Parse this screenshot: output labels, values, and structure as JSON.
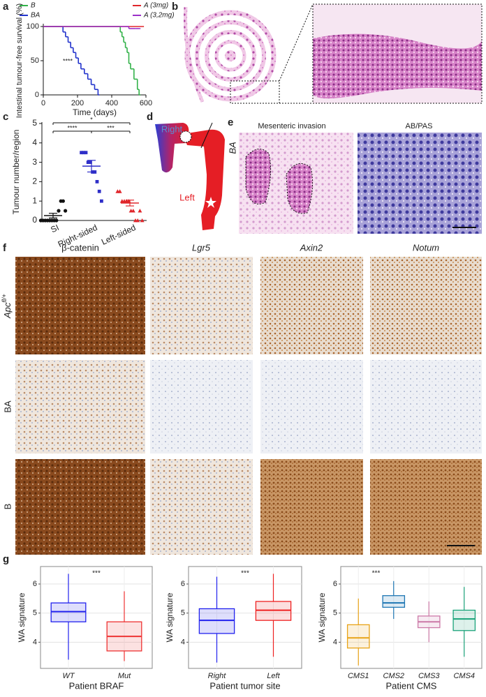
{
  "panel_labels": [
    "a",
    "b",
    "c",
    "d",
    "e",
    "f",
    "g"
  ],
  "chart_data": [
    {
      "type": "survival",
      "ylabel": "Intestinal tumour-free survival (%)",
      "xlabel": "Time (days)",
      "annotation": "****",
      "xlim": [
        0,
        600
      ],
      "xticks": [
        0,
        200,
        400,
        600
      ],
      "ylim": [
        0,
        100
      ],
      "yticks": [
        0,
        50,
        100
      ],
      "series": [
        {
          "name": "BA",
          "color": "#2233cc",
          "x": [
            0,
            115,
            130,
            145,
            160,
            175,
            190,
            205,
            220,
            240,
            260,
            280,
            300,
            320
          ],
          "values": [
            100,
            92,
            85,
            77,
            69,
            62,
            54,
            46,
            38,
            31,
            23,
            15,
            8,
            0
          ]
        },
        {
          "name": "B",
          "color": "#33b24a",
          "x": [
            0,
            450,
            460,
            470,
            480,
            490,
            500,
            510,
            530,
            550,
            560
          ],
          "values": [
            100,
            92,
            85,
            77,
            69,
            62,
            46,
            38,
            23,
            8,
            0
          ]
        },
        {
          "name": "A (3mg)",
          "color": "#e0262b",
          "x": [
            0,
            580
          ],
          "values": [
            100,
            100
          ]
        },
        {
          "name": "A (3,2mg)",
          "color": "#9b30c8",
          "x": [
            0,
            480,
            500,
            540,
            560
          ],
          "values": [
            100,
            100,
            97,
            97,
            97
          ]
        }
      ]
    },
    {
      "type": "dot",
      "ylabel": "Tumour number/region",
      "categories": [
        "SI",
        "Right-sided",
        "Left-sided"
      ],
      "colors": [
        "#111111",
        "#2e2ec8",
        "#e0262b"
      ],
      "values": [
        [
          0,
          0,
          0,
          0,
          0,
          0,
          0,
          0,
          0.5,
          1,
          1,
          0.5
        ],
        [
          3.5,
          3.5,
          3.5,
          3,
          3,
          2.5,
          2.5,
          2,
          1.5,
          1
        ],
        [
          1.5,
          1.5,
          1,
          1,
          1,
          1,
          0.5,
          0.5,
          0,
          0,
          0.5,
          0
        ]
      ],
      "means": [
        0.25,
        2.8,
        0.9
      ],
      "sems": [
        0.12,
        0.3,
        0.15
      ],
      "annotations": [
        "****",
        "*",
        "***"
      ],
      "ylim": [
        0,
        5
      ],
      "yticks": [
        0,
        1,
        2,
        3,
        4,
        5
      ]
    },
    {
      "type": "box",
      "ylabel": "WA signature",
      "xlabel": "Patient BRAF",
      "annotation": "***",
      "categories": [
        "WT",
        "Mut"
      ],
      "colors": [
        "#2222ee",
        "#ee3333"
      ],
      "min": [
        3.4,
        3.35
      ],
      "q1": [
        4.7,
        3.7
      ],
      "median": [
        5.05,
        4.2
      ],
      "q3": [
        5.35,
        4.7
      ],
      "max": [
        6.35,
        5.75
      ],
      "ylim": [
        3.1,
        6.6
      ],
      "yticks": [
        4,
        5,
        6
      ]
    },
    {
      "type": "box",
      "ylabel": "WA signature",
      "xlabel": "Patient tumor site",
      "annotation": "***",
      "categories": [
        "Right",
        "Left"
      ],
      "colors": [
        "#2222ee",
        "#ee2222"
      ],
      "min": [
        3.3,
        3.5
      ],
      "q1": [
        4.3,
        4.75
      ],
      "median": [
        4.75,
        5.1
      ],
      "q3": [
        5.15,
        5.4
      ],
      "max": [
        6.25,
        6.35
      ],
      "ylim": [
        3.1,
        6.6
      ],
      "yticks": [
        4,
        5,
        6
      ]
    },
    {
      "type": "box",
      "ylabel": "WA signature",
      "xlabel": "Patient CMS",
      "annotation": "***",
      "categories": [
        "CMS1",
        "CMS2",
        "CMS3",
        "CMS4"
      ],
      "colors": [
        "#e8a317",
        "#1f77b4",
        "#cc79a7",
        "#1aa37a"
      ],
      "min": [
        3.2,
        4.8,
        4.0,
        3.5
      ],
      "q1": [
        3.8,
        5.2,
        4.5,
        4.4
      ],
      "median": [
        4.15,
        5.35,
        4.7,
        4.8
      ],
      "q3": [
        4.6,
        5.6,
        4.9,
        5.1
      ],
      "max": [
        5.5,
        6.1,
        5.4,
        5.9
      ],
      "ylim": [
        3.1,
        6.6
      ],
      "yticks": [
        4,
        5,
        6
      ]
    }
  ],
  "diagram": {
    "right": "Right",
    "left": "Left"
  },
  "panel_e": {
    "titles": [
      "Mesenteric invasion",
      "AB/PAS"
    ],
    "row_label": "BA"
  },
  "panel_f": {
    "columns": [
      "β-catenin",
      "Lgr5",
      "Axin2",
      "Notum"
    ],
    "rows": [
      "Apc",
      "BA",
      "B"
    ],
    "row_superscript": "fl/+"
  }
}
